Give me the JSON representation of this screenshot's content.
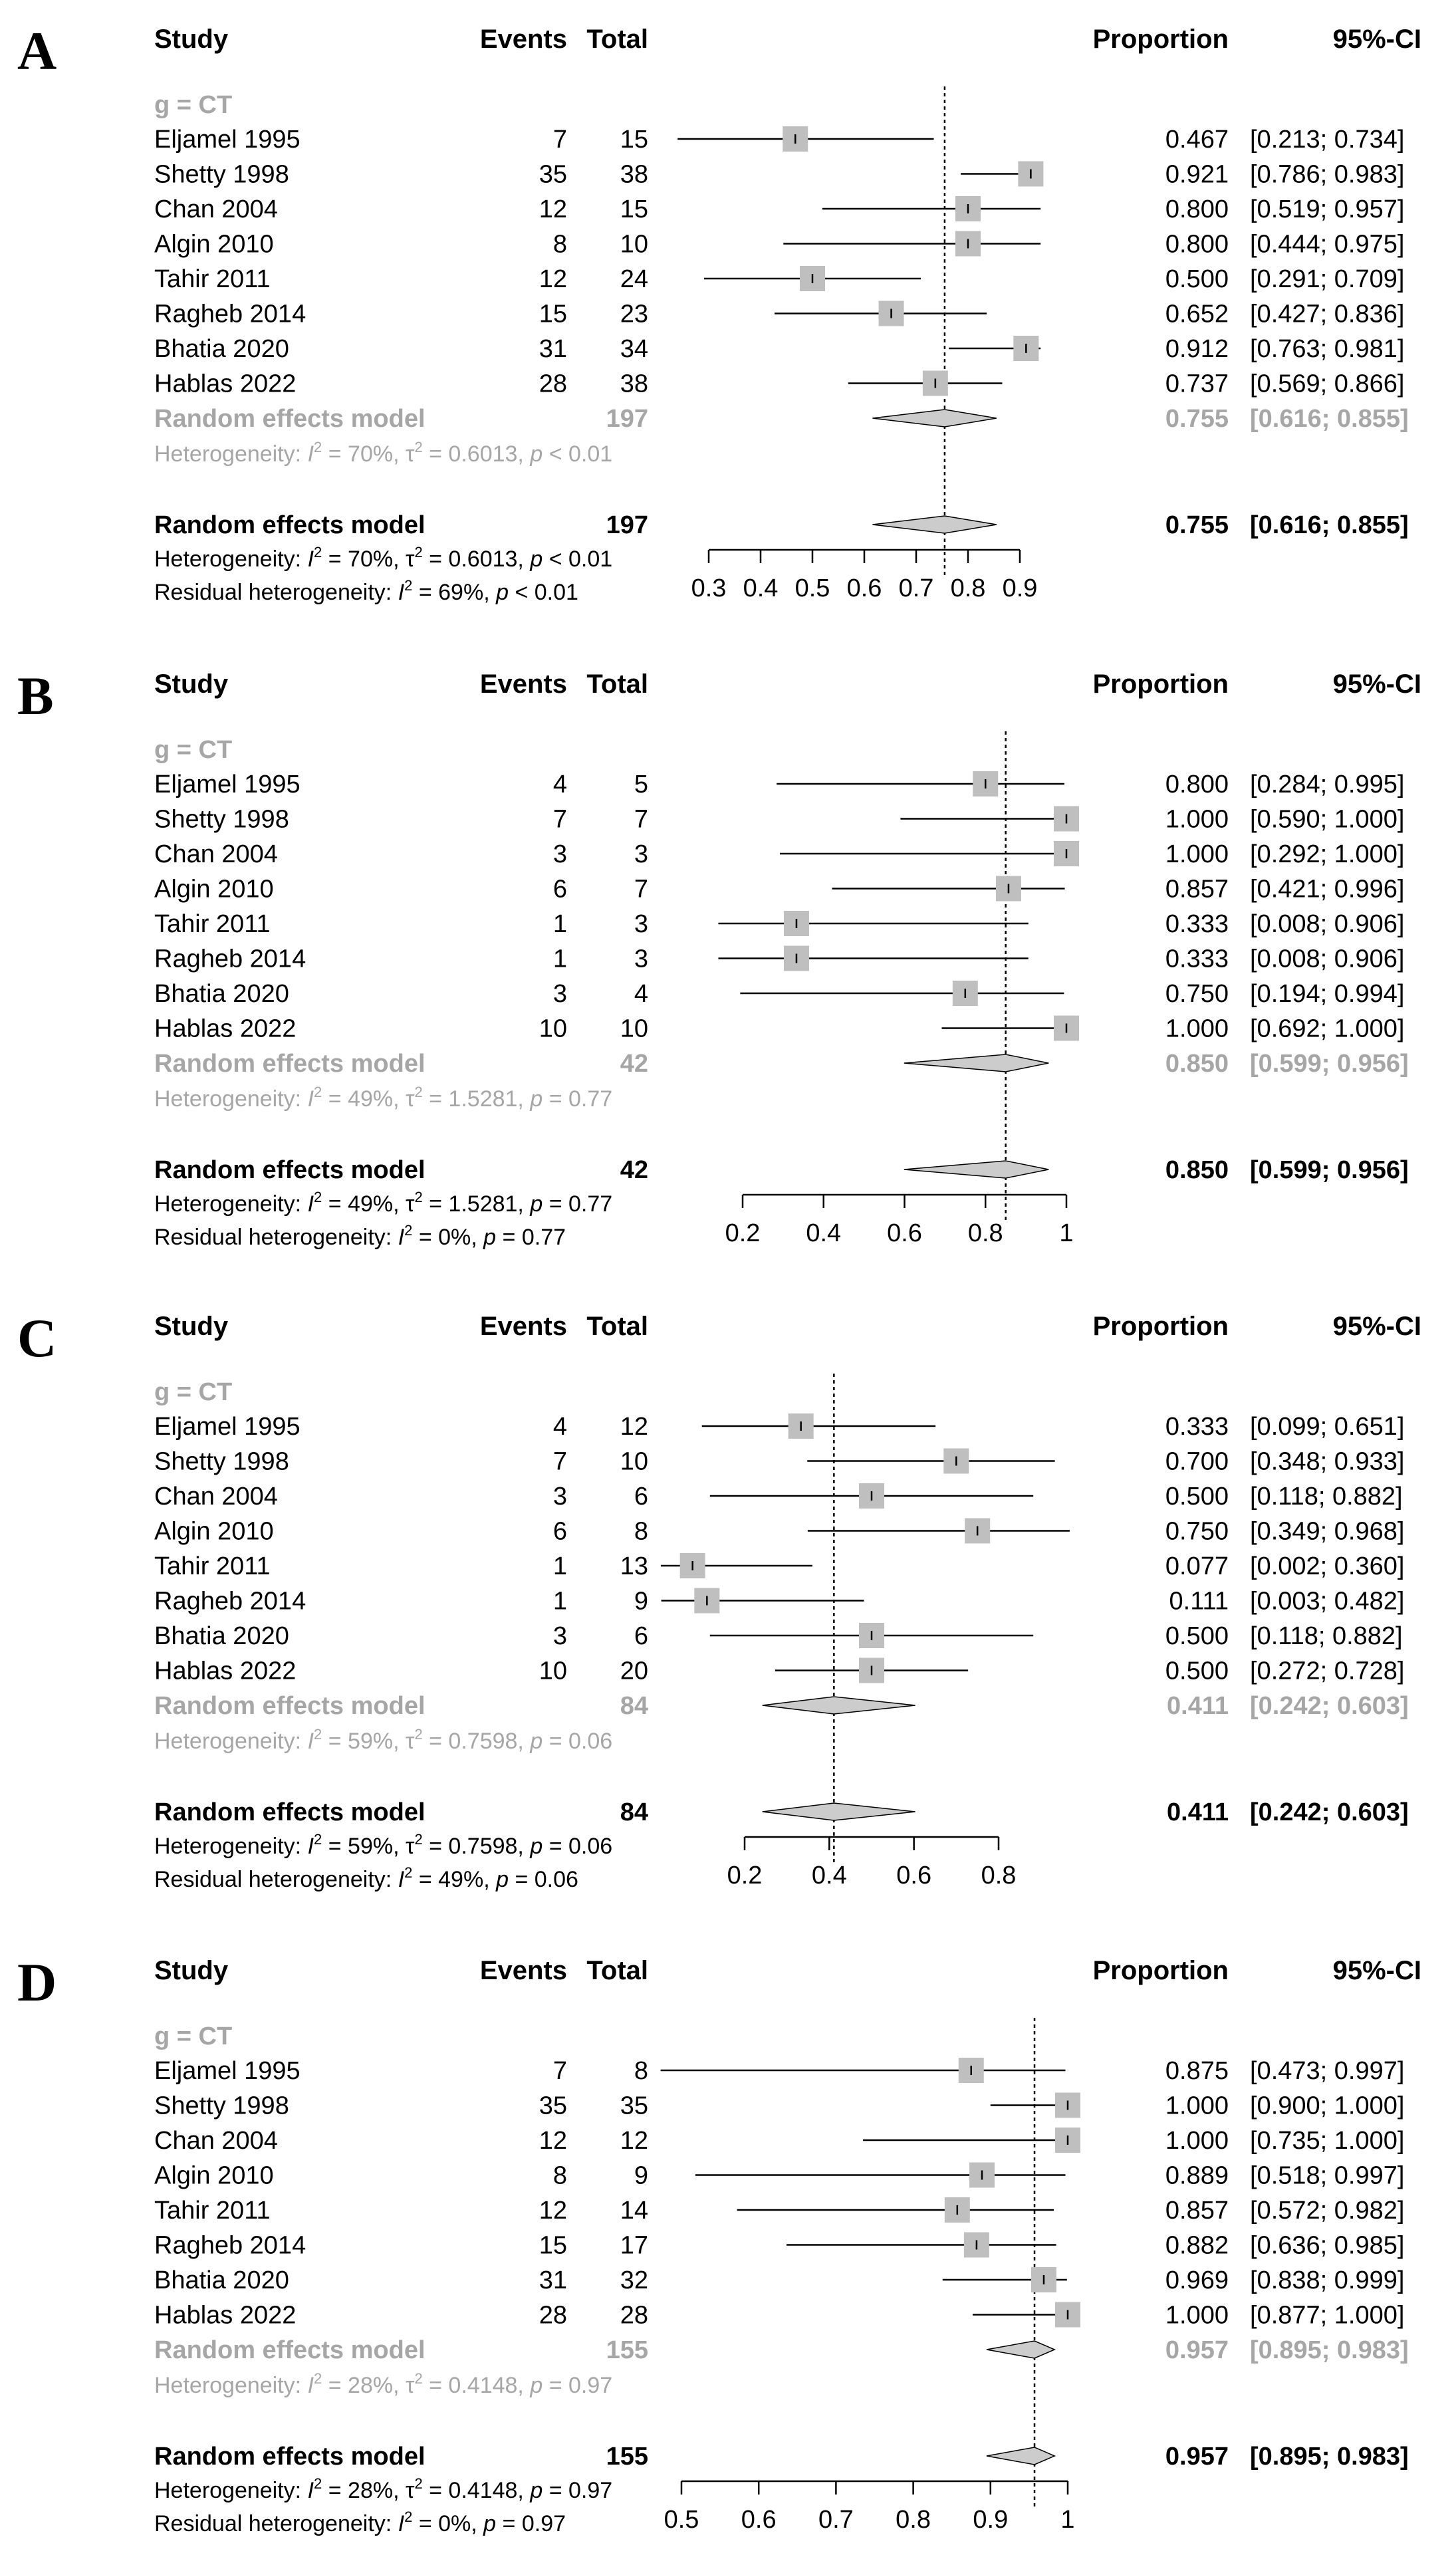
{
  "colors": {
    "text": "#000000",
    "subgroup_text": "#a6a6a6",
    "box_fill": "#bfbfbf",
    "diamond_fill": "#cccccc",
    "line": "#000000"
  },
  "headers": {
    "study": "Study",
    "events": "Events",
    "total": "Total",
    "proportion": "Proportion",
    "ci": "95%-CI"
  },
  "chart_data": [
    {
      "type": "forest",
      "panel_label": "A",
      "subgroup_label": "g = CT",
      "studies": [
        {
          "name": "Eljamel 1995",
          "events": "7",
          "total": "15",
          "prop": 0.467,
          "lower": 0.213,
          "upper": 0.734,
          "prop_text": "0.467",
          "ci_text": "[0.213; 0.734]"
        },
        {
          "name": "Shetty 1998",
          "events": "35",
          "total": "38",
          "prop": 0.921,
          "lower": 0.786,
          "upper": 0.983,
          "prop_text": "0.921",
          "ci_text": "[0.786; 0.983]"
        },
        {
          "name": "Chan 2004",
          "events": "12",
          "total": "15",
          "prop": 0.8,
          "lower": 0.519,
          "upper": 0.957,
          "prop_text": "0.800",
          "ci_text": "[0.519; 0.957]"
        },
        {
          "name": "Algin 2010",
          "events": "8",
          "total": "10",
          "prop": 0.8,
          "lower": 0.444,
          "upper": 0.975,
          "prop_text": "0.800",
          "ci_text": "[0.444; 0.975]"
        },
        {
          "name": "Tahir 2011",
          "events": "12",
          "total": "24",
          "prop": 0.5,
          "lower": 0.291,
          "upper": 0.709,
          "prop_text": "0.500",
          "ci_text": "[0.291; 0.709]"
        },
        {
          "name": "Ragheb 2014",
          "events": "15",
          "total": "23",
          "prop": 0.652,
          "lower": 0.427,
          "upper": 0.836,
          "prop_text": "0.652",
          "ci_text": "[0.427; 0.836]"
        },
        {
          "name": "Bhatia 2020",
          "events": "31",
          "total": "34",
          "prop": 0.912,
          "lower": 0.763,
          "upper": 0.981,
          "prop_text": "0.912",
          "ci_text": "[0.763; 0.981]"
        },
        {
          "name": "Hablas 2022",
          "events": "28",
          "total": "38",
          "prop": 0.737,
          "lower": 0.569,
          "upper": 0.866,
          "prop_text": "0.737",
          "ci_text": "[0.569; 0.866]"
        }
      ],
      "model_label": "Random effects model",
      "total": "197",
      "pooled": {
        "prop": 0.755,
        "lower": 0.616,
        "upper": 0.855,
        "prop_text": "0.755",
        "ci_text": "[0.616; 0.855]"
      },
      "het": {
        "i2": "70%",
        "tau2": "0.6013",
        "p": "< 0.01"
      },
      "resid": {
        "i2": "69%",
        "p": "< 0.01"
      },
      "xlim": [
        0.3,
        0.9
      ],
      "ticks": [
        0.3,
        0.4,
        0.5,
        0.6,
        0.7,
        0.8,
        0.9
      ],
      "tick_labels": [
        "0.3",
        "0.4",
        "0.5",
        "0.6",
        "0.7",
        "0.8",
        "0.9"
      ],
      "clip": [
        0.24,
        0.94
      ]
    },
    {
      "type": "forest",
      "panel_label": "B",
      "subgroup_label": "g = CT",
      "studies": [
        {
          "name": "Eljamel 1995",
          "events": "4",
          "total": "5",
          "prop": 0.8,
          "lower": 0.284,
          "upper": 0.995,
          "prop_text": "0.800",
          "ci_text": "[0.284; 0.995]"
        },
        {
          "name": "Shetty 1998",
          "events": "7",
          "total": "7",
          "prop": 1.0,
          "lower": 0.59,
          "upper": 1.0,
          "prop_text": "1.000",
          "ci_text": "[0.590; 1.000]"
        },
        {
          "name": "Chan 2004",
          "events": "3",
          "total": "3",
          "prop": 1.0,
          "lower": 0.292,
          "upper": 1.0,
          "prop_text": "1.000",
          "ci_text": "[0.292; 1.000]"
        },
        {
          "name": "Algin 2010",
          "events": "6",
          "total": "7",
          "prop": 0.857,
          "lower": 0.421,
          "upper": 0.996,
          "prop_text": "0.857",
          "ci_text": "[0.421; 0.996]"
        },
        {
          "name": "Tahir 2011",
          "events": "1",
          "total": "3",
          "prop": 0.333,
          "lower": 0.008,
          "upper": 0.906,
          "prop_text": "0.333",
          "ci_text": "[0.008; 0.906]"
        },
        {
          "name": "Ragheb 2014",
          "events": "1",
          "total": "3",
          "prop": 0.333,
          "lower": 0.008,
          "upper": 0.906,
          "prop_text": "0.333",
          "ci_text": "[0.008; 0.906]"
        },
        {
          "name": "Bhatia 2020",
          "events": "3",
          "total": "4",
          "prop": 0.75,
          "lower": 0.194,
          "upper": 0.994,
          "prop_text": "0.750",
          "ci_text": "[0.194; 0.994]"
        },
        {
          "name": "Hablas 2022",
          "events": "10",
          "total": "10",
          "prop": 1.0,
          "lower": 0.692,
          "upper": 1.0,
          "prop_text": "1.000",
          "ci_text": "[0.692; 1.000]"
        }
      ],
      "model_label": "Random effects model",
      "total": "42",
      "pooled": {
        "prop": 0.85,
        "lower": 0.599,
        "upper": 0.956,
        "prop_text": "0.850",
        "ci_text": "[0.599; 0.956]"
      },
      "het": {
        "i2": "49%",
        "tau2": "1.5281",
        "p": "0.77"
      },
      "resid": {
        "i2": "0%",
        "p": "0.77"
      },
      "xlim": [
        0.2,
        1.0
      ],
      "ticks": [
        0.2,
        0.4,
        0.6,
        0.8,
        1.0
      ],
      "tick_labels": [
        "0.2",
        "0.4",
        "0.6",
        "0.8",
        "1"
      ],
      "clip": [
        0.14,
        1.0
      ]
    },
    {
      "type": "forest",
      "panel_label": "C",
      "subgroup_label": "g = CT",
      "studies": [
        {
          "name": "Eljamel 1995",
          "events": "4",
          "total": "12",
          "prop": 0.333,
          "lower": 0.099,
          "upper": 0.651,
          "prop_text": "0.333",
          "ci_text": "[0.099; 0.651]"
        },
        {
          "name": "Shetty 1998",
          "events": "7",
          "total": "10",
          "prop": 0.7,
          "lower": 0.348,
          "upper": 0.933,
          "prop_text": "0.700",
          "ci_text": "[0.348; 0.933]"
        },
        {
          "name": "Chan 2004",
          "events": "3",
          "total": "6",
          "prop": 0.5,
          "lower": 0.118,
          "upper": 0.882,
          "prop_text": "0.500",
          "ci_text": "[0.118; 0.882]"
        },
        {
          "name": "Algin 2010",
          "events": "6",
          "total": "8",
          "prop": 0.75,
          "lower": 0.349,
          "upper": 0.968,
          "prop_text": "0.750",
          "ci_text": "[0.349; 0.968]"
        },
        {
          "name": "Tahir 2011",
          "events": "1",
          "total": "13",
          "prop": 0.077,
          "lower": 0.002,
          "upper": 0.36,
          "prop_text": "0.077",
          "ci_text": "[0.002; 0.360]"
        },
        {
          "name": "Ragheb 2014",
          "events": "1",
          "total": "9",
          "prop": 0.111,
          "lower": 0.003,
          "upper": 0.482,
          "prop_text": "0.111",
          "ci_text": "[0.003; 0.482]"
        },
        {
          "name": "Bhatia 2020",
          "events": "3",
          "total": "6",
          "prop": 0.5,
          "lower": 0.118,
          "upper": 0.882,
          "prop_text": "0.500",
          "ci_text": "[0.118; 0.882]"
        },
        {
          "name": "Hablas 2022",
          "events": "10",
          "total": "20",
          "prop": 0.5,
          "lower": 0.272,
          "upper": 0.728,
          "prop_text": "0.500",
          "ci_text": "[0.272; 0.728]"
        }
      ],
      "model_label": "Random effects model",
      "total": "84",
      "pooled": {
        "prop": 0.411,
        "lower": 0.242,
        "upper": 0.603,
        "prop_text": "0.411",
        "ci_text": "[0.242; 0.603]"
      },
      "het": {
        "i2": "59%",
        "tau2": "0.7598",
        "p": "0.06"
      },
      "resid": {
        "i2": "49%",
        "p": "0.06"
      },
      "xlim": [
        0.2,
        0.8
      ],
      "ticks": [
        0.2,
        0.4,
        0.6,
        0.8
      ],
      "tick_labels": [
        "0.2",
        "0.4",
        "0.6",
        "0.8"
      ],
      "clip": [
        0.0,
        1.0
      ]
    },
    {
      "type": "forest",
      "panel_label": "D",
      "subgroup_label": "g = CT",
      "studies": [
        {
          "name": "Eljamel 1995",
          "events": "7",
          "total": "8",
          "prop": 0.875,
          "lower": 0.473,
          "upper": 0.997,
          "prop_text": "0.875",
          "ci_text": "[0.473; 0.997]"
        },
        {
          "name": "Shetty 1998",
          "events": "35",
          "total": "35",
          "prop": 1.0,
          "lower": 0.9,
          "upper": 1.0,
          "prop_text": "1.000",
          "ci_text": "[0.900; 1.000]"
        },
        {
          "name": "Chan 2004",
          "events": "12",
          "total": "12",
          "prop": 1.0,
          "lower": 0.735,
          "upper": 1.0,
          "prop_text": "1.000",
          "ci_text": "[0.735; 1.000]"
        },
        {
          "name": "Algin 2010",
          "events": "8",
          "total": "9",
          "prop": 0.889,
          "lower": 0.518,
          "upper": 0.997,
          "prop_text": "0.889",
          "ci_text": "[0.518; 0.997]"
        },
        {
          "name": "Tahir 2011",
          "events": "12",
          "total": "14",
          "prop": 0.857,
          "lower": 0.572,
          "upper": 0.982,
          "prop_text": "0.857",
          "ci_text": "[0.572; 0.982]"
        },
        {
          "name": "Ragheb 2014",
          "events": "15",
          "total": "17",
          "prop": 0.882,
          "lower": 0.636,
          "upper": 0.985,
          "prop_text": "0.882",
          "ci_text": "[0.636; 0.985]"
        },
        {
          "name": "Bhatia 2020",
          "events": "31",
          "total": "32",
          "prop": 0.969,
          "lower": 0.838,
          "upper": 0.999,
          "prop_text": "0.969",
          "ci_text": "[0.838; 0.999]"
        },
        {
          "name": "Hablas 2022",
          "events": "28",
          "total": "28",
          "prop": 1.0,
          "lower": 0.877,
          "upper": 1.0,
          "prop_text": "1.000",
          "ci_text": "[0.877; 1.000]"
        }
      ],
      "model_label": "Random effects model",
      "total": "155",
      "pooled": {
        "prop": 0.957,
        "lower": 0.895,
        "upper": 0.983,
        "prop_text": "0.957",
        "ci_text": "[0.895; 0.983]"
      },
      "het": {
        "i2": "28%",
        "tau2": "0.4148",
        "p": "0.97"
      },
      "resid": {
        "i2": "0%",
        "p": "0.97"
      },
      "xlim": [
        0.5,
        1.0
      ],
      "ticks": [
        0.5,
        0.6,
        0.7,
        0.8,
        0.9,
        1.0
      ],
      "tick_labels": [
        "0.5",
        "0.6",
        "0.7",
        "0.8",
        "0.9",
        "1"
      ],
      "clip": [
        0.45,
        1.0
      ]
    }
  ]
}
